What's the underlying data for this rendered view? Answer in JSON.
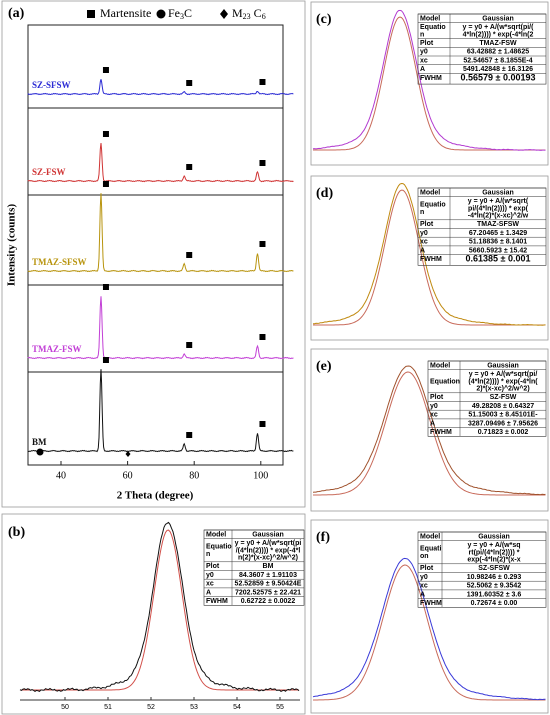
{
  "panel_a": {
    "label": "(a)",
    "legend": [
      {
        "parts": [
          "Martensite"
        ]
      },
      {
        "parts": [
          "Fe",
          "3",
          "C"
        ]
      },
      {
        "parts": [
          "M",
          "23",
          " C",
          "6"
        ]
      }
    ],
    "traces": [
      {
        "name": "SZ-SFSW",
        "color": "#2a2ad4"
      },
      {
        "name": "SZ-FSW",
        "color": "#d03434"
      },
      {
        "name": "TMAZ-SFSW",
        "color": "#b8940e"
      },
      {
        "name": "TMAZ-FSW",
        "color": "#c23fd6"
      },
      {
        "name": "BM",
        "color": "#111111"
      }
    ],
    "x_axis": {
      "label": "2 Theta (degree)",
      "ticks": [
        "40",
        "60",
        "80",
        "100"
      ]
    },
    "y_axis": {
      "label": "Intensity (counts)"
    }
  },
  "panel_b": {
    "label": "(b)",
    "x_ticks": [
      "50",
      "51",
      "52",
      "53",
      "54",
      "55"
    ],
    "color": "#111111",
    "table": {
      "rows": [
        {
          "key": [
            "Model"
          ],
          "value": [
            "Gaussian"
          ]
        },
        {
          "key": [
            "Equatio",
            "n"
          ],
          "value": [
            "y = y0 + A/(w*sqrt(pi",
            "/(4*ln(2)))) * exp(-4*l",
            "n(2)*(x-xc)^2/w^2)"
          ]
        },
        {
          "key": [
            "Plot"
          ],
          "value": [
            "BM"
          ]
        },
        {
          "key": [
            "y0"
          ],
          "value": [
            "84.3607 ± 1.91103"
          ]
        },
        {
          "key": [
            "xc"
          ],
          "value": [
            "52.52859 ± 9.50424E"
          ]
        },
        {
          "key": [
            "A"
          ],
          "value": [
            "7202.52575 ± 22.421"
          ]
        },
        {
          "key": [
            "FWHM"
          ],
          "value": [
            "0.62722 ± 0.0022"
          ]
        }
      ]
    }
  },
  "panels_right": [
    {
      "label": "(c)",
      "color": "#b23ad0",
      "table": {
        "rows": [
          {
            "key": [
              "Model"
            ],
            "value": [
              "Gaussian"
            ]
          },
          {
            "key": [
              "Equatio",
              "n"
            ],
            "value": [
              "y = y0 + A/(w*sqrt(pi/(",
              "4*ln(2)))) * exp(-4*ln(2"
            ]
          },
          {
            "key": [
              "Plot"
            ],
            "value": [
              "TMAZ-FSW"
            ]
          },
          {
            "key": [
              "y0"
            ],
            "value": [
              "63.42882 ± 1.48625"
            ]
          },
          {
            "key": [
              "xc"
            ],
            "value": [
              "52.54657 ± 8.1855E-4"
            ]
          },
          {
            "key": [
              "A"
            ],
            "value": [
              "5491.42848 ± 16.3126"
            ]
          },
          {
            "key": [
              "FWHM"
            ],
            "value": [
              "0.56579 ± 0.00193"
            ]
          }
        ]
      }
    },
    {
      "label": "(d)",
      "color": "#c08a10",
      "table": {
        "rows": [
          {
            "key": [
              "Model"
            ],
            "value": [
              "Gaussian"
            ]
          },
          {
            "key": [
              "Equatio",
              "n"
            ],
            "value": [
              "y = y0 + A/(w*sqrt(",
              "pi/(4*ln(2)))) * exp(",
              "-4*ln(2)*(x-xc)^2/w"
            ]
          },
          {
            "key": [
              "Plot"
            ],
            "value": [
              "TMAZ-SFSW"
            ]
          },
          {
            "key": [
              "y0"
            ],
            "value": [
              "67.20465 ± 1.3429"
            ]
          },
          {
            "key": [
              "xc"
            ],
            "value": [
              "51.18836 ± 8.1401"
            ]
          },
          {
            "key": [
              "A"
            ],
            "value": [
              "5660.5923 ± 15.42"
            ]
          },
          {
            "key": [
              "FWHM"
            ],
            "value": [
              "0.61385 ± 0.001"
            ]
          }
        ]
      }
    },
    {
      "label": "(e)",
      "color": "#a0522d",
      "table": {
        "rows": [
          {
            "key": [
              "Model"
            ],
            "value": [
              "Gaussian"
            ]
          },
          {
            "key": [
              "Equation"
            ],
            "value": [
              "y = y0 + A/(w*sqrt(pi/",
              "(4*ln(2)))) * exp(-4*ln(",
              "2)*(x-xc)^2/w^2)"
            ]
          },
          {
            "key": [
              "Plot"
            ],
            "value": [
              "SZ-FSW"
            ]
          },
          {
            "key": [
              "y0"
            ],
            "value": [
              "49.28208 ± 0.64327"
            ]
          },
          {
            "key": [
              "xc"
            ],
            "value": [
              "51.15003 ± 8.45101E-"
            ]
          },
          {
            "key": [
              "A"
            ],
            "value": [
              "3287.09496 ± 7.95626"
            ]
          },
          {
            "key": [
              "FWHM"
            ],
            "value": [
              "0.71823 ± 0.002"
            ]
          }
        ]
      }
    },
    {
      "label": "(f)",
      "color": "#3a3ad8",
      "table": {
        "rows": [
          {
            "key": [
              "Model"
            ],
            "value": [
              "Gaussian"
            ]
          },
          {
            "key": [
              "Equati",
              "on"
            ],
            "value": [
              "y = y0 + A/(w*sq",
              "rt(pi/(4*ln(2)))) *",
              "exp(-4*ln(2)*(x-x"
            ]
          },
          {
            "key": [
              "Plot"
            ],
            "value": [
              "SZ-SFSW"
            ]
          },
          {
            "key": [
              "y0"
            ],
            "value": [
              "10.98246 ± 0.293"
            ]
          },
          {
            "key": [
              "xc"
            ],
            "value": [
              "52.5062 ± 9.3542"
            ]
          },
          {
            "key": [
              "A"
            ],
            "value": [
              "1391.60352 ± 3.6"
            ]
          },
          {
            "key": [
              "FWHM"
            ],
            "value": [
              "0.72674 ± 0.00"
            ]
          }
        ]
      }
    }
  ]
}
